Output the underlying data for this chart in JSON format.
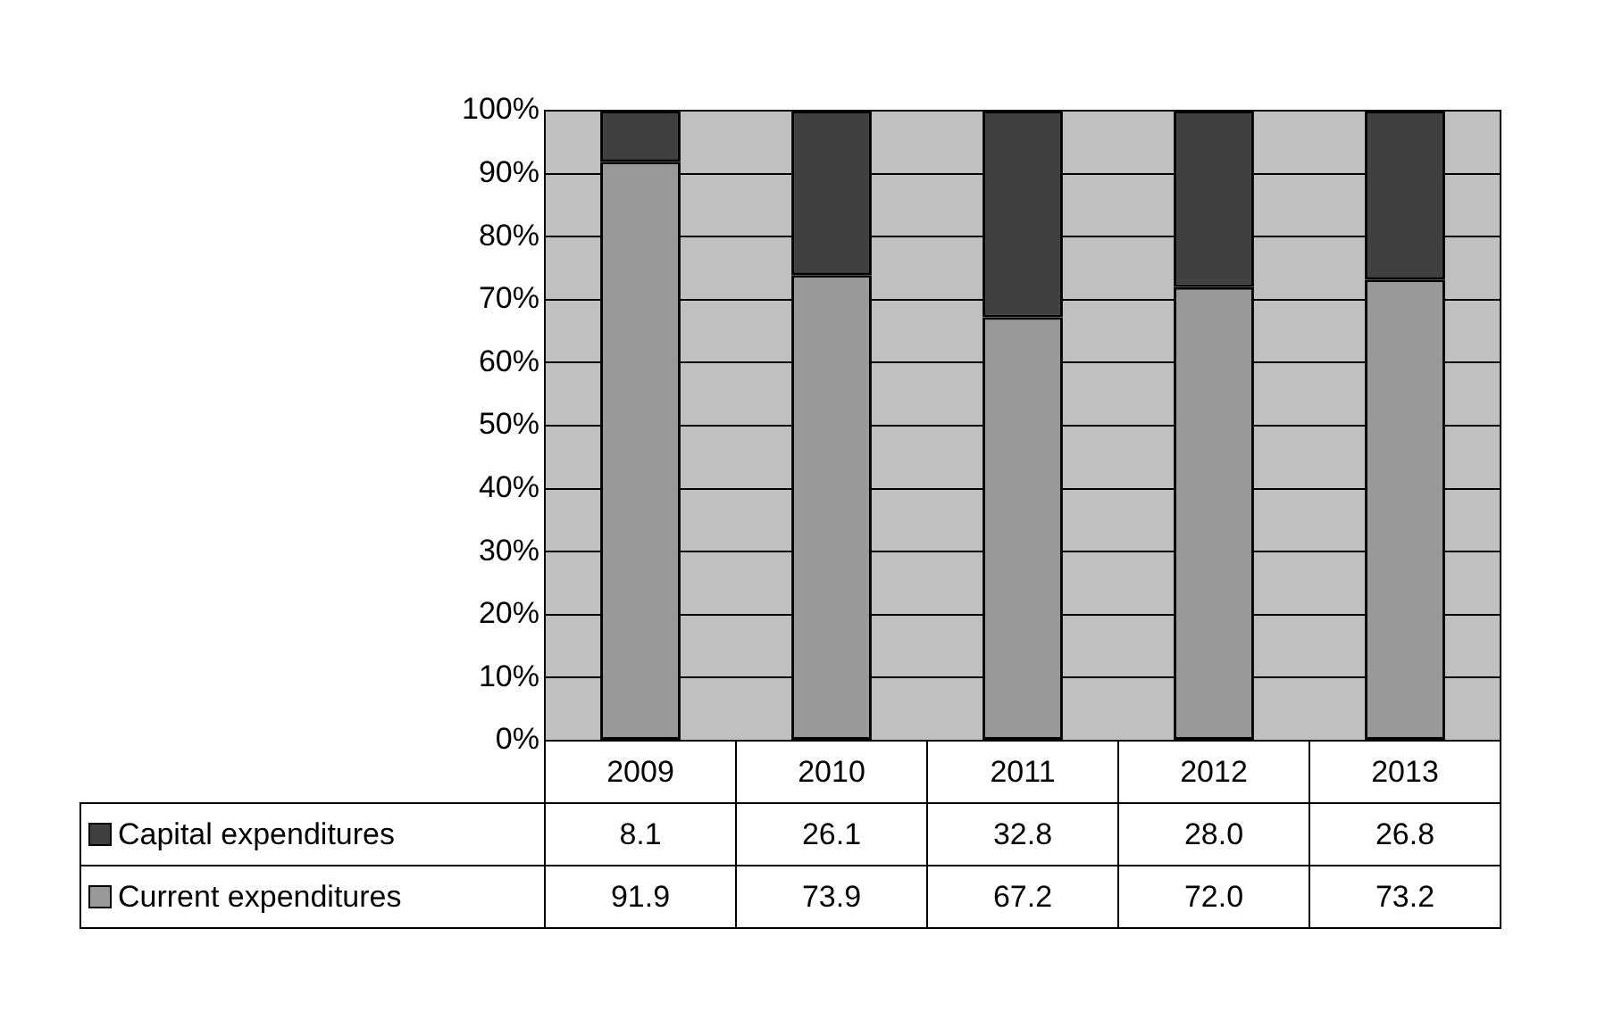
{
  "chart_data": {
    "type": "bar",
    "stacked": true,
    "categories": [
      "2009",
      "2010",
      "2011",
      "2012",
      "2013"
    ],
    "series": [
      {
        "name": "Current expenditures",
        "color": "#999999",
        "values": [
          91.9,
          73.9,
          67.2,
          72.0,
          73.2
        ],
        "value_labels": [
          "91.9",
          "73.9",
          "67.2",
          "72.0",
          "73.2"
        ]
      },
      {
        "name": "Capital expenditures",
        "color": "#404040",
        "values": [
          8.1,
          26.1,
          32.8,
          28.0,
          26.8
        ],
        "value_labels": [
          "8.1",
          "26.1",
          "32.8",
          "28.0",
          "26.8"
        ]
      }
    ],
    "ylim": [
      0,
      100
    ],
    "yticks": [
      {
        "value": 0,
        "label": "0%"
      },
      {
        "value": 10,
        "label": "10%"
      },
      {
        "value": 20,
        "label": "20%"
      },
      {
        "value": 30,
        "label": "30%"
      },
      {
        "value": 40,
        "label": "40%"
      },
      {
        "value": 50,
        "label": "50%"
      },
      {
        "value": 60,
        "label": "60%"
      },
      {
        "value": 70,
        "label": "70%"
      },
      {
        "value": 80,
        "label": "80%"
      },
      {
        "value": 90,
        "label": "90%"
      },
      {
        "value": 100,
        "label": "100%"
      }
    ],
    "grid": "y",
    "legend": "bottom"
  }
}
